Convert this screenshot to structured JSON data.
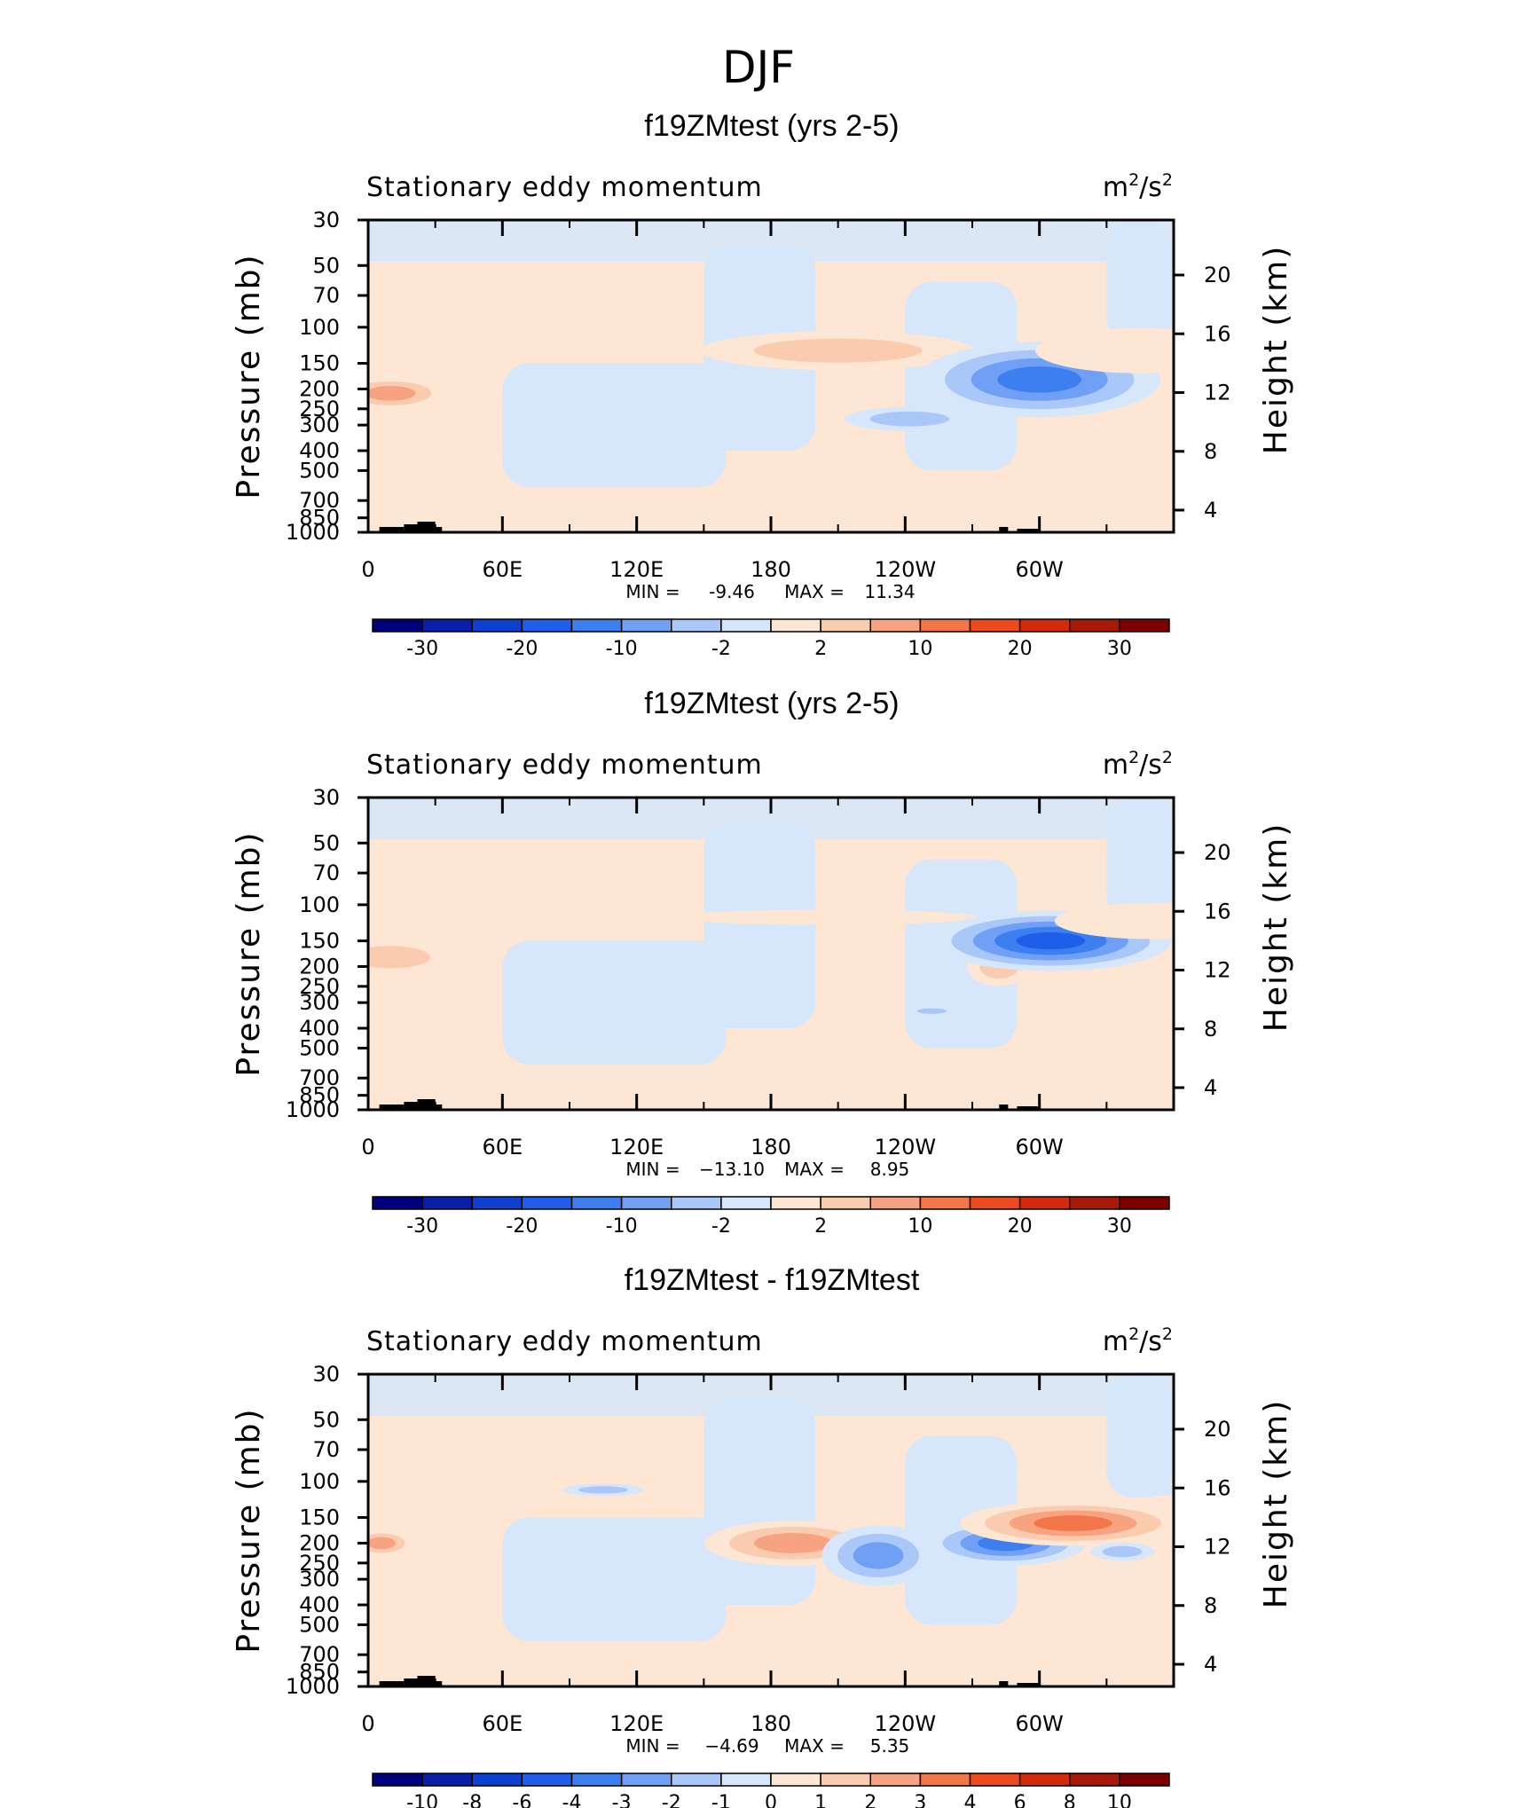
{
  "chart_data": {
    "type": "contour",
    "suptitle": "DJF",
    "panels": [
      {
        "title": "f19ZMtest (yrs 2-5)",
        "left_label": "Stationary eddy momentum",
        "units": "m²/s²",
        "units_base": "m",
        "units_sup1": "2",
        "units_mid": "/s",
        "units_sup2": "2",
        "ylabel": "Pressure (mb)",
        "y2label": "Height (km)",
        "xticks": [
          "0",
          "60E",
          "120E",
          "180",
          "120W",
          "60W"
        ],
        "yticks": [
          "30",
          "50",
          "70",
          "100",
          "150",
          "200",
          "250",
          "300",
          "400",
          "500",
          "700",
          "850",
          "1000"
        ],
        "y2ticks": [
          "20",
          "16",
          "12",
          "8",
          "4"
        ],
        "stats": {
          "min_label": "MIN =",
          "min": "-9.46",
          "max_label": "MAX =",
          "max": "11.34"
        },
        "colorbar": {
          "labels": [
            "-30",
            "-20",
            "-10",
            "-2",
            "2",
            "10",
            "20",
            "30"
          ],
          "label_slots": [
            1,
            3,
            5,
            7,
            9,
            11,
            13,
            15
          ]
        },
        "blobs": [
          {
            "lon": 10,
            "p": 210,
            "level": 3,
            "rx": 14,
            "ry": 22
          },
          {
            "lon": 110,
            "p": 115,
            "level": 1,
            "rx": 8,
            "ry": 6
          },
          {
            "lon": 210,
            "p": 130,
            "level": 2,
            "rx": 34,
            "ry": 26
          },
          {
            "lon": 242,
            "p": 280,
            "level": -2,
            "rx": 16,
            "ry": 16
          },
          {
            "lon": 282,
            "p": 220,
            "level": 2,
            "rx": 6,
            "ry": 22
          },
          {
            "lon": 300,
            "p": 180,
            "level": -4,
            "rx": 30,
            "ry": 50
          },
          {
            "lon": 345,
            "p": 130,
            "level": 1,
            "rx": 26,
            "ry": 30
          }
        ]
      },
      {
        "title": "f19ZMtest (yrs 2-5)",
        "left_label": "Stationary eddy momentum",
        "units": "m²/s²",
        "units_base": "m",
        "units_sup1": "2",
        "units_mid": "/s",
        "units_sup2": "2",
        "ylabel": "Pressure (mb)",
        "y2label": "Height (km)",
        "xticks": [
          "0",
          "60E",
          "120E",
          "180",
          "120W",
          "60W"
        ],
        "yticks": [
          "30",
          "50",
          "70",
          "100",
          "150",
          "200",
          "250",
          "300",
          "400",
          "500",
          "700",
          "850",
          "1000"
        ],
        "y2ticks": [
          "20",
          "16",
          "12",
          "8",
          "4"
        ],
        "stats": {
          "min_label": "MIN =",
          "min": "−13.10",
          "max_label": "MAX =",
          "max": "8.95"
        },
        "colorbar": {
          "labels": [
            "-30",
            "-20",
            "-10",
            "-2",
            "2",
            "10",
            "20",
            "30"
          ],
          "label_slots": [
            1,
            3,
            5,
            7,
            9,
            11,
            13,
            15
          ]
        },
        "blobs": [
          {
            "lon": 10,
            "p": 180,
            "level": 2,
            "rx": 16,
            "ry": 24
          },
          {
            "lon": 115,
            "p": 110,
            "level": 1,
            "rx": 10,
            "ry": 8
          },
          {
            "lon": 205,
            "p": 115,
            "level": 1,
            "rx": 38,
            "ry": 10
          },
          {
            "lon": 252,
            "p": 330,
            "level": -2,
            "rx": 6,
            "ry": 6
          },
          {
            "lon": 282,
            "p": 200,
            "level": 2,
            "rx": 8,
            "ry": 26
          },
          {
            "lon": 305,
            "p": 150,
            "level": -5,
            "rx": 30,
            "ry": 40
          },
          {
            "lon": 328,
            "p": 350,
            "level": 1,
            "rx": 8,
            "ry": 24
          },
          {
            "lon": 350,
            "p": 120,
            "level": 1,
            "rx": 24,
            "ry": 24
          }
        ]
      },
      {
        "title": "f19ZMtest - f19ZMtest",
        "left_label": "Stationary eddy momentum",
        "units": "m²/s²",
        "units_base": "m",
        "units_sup1": "2",
        "units_mid": "/s",
        "units_sup2": "2",
        "ylabel": "Pressure (mb)",
        "y2label": "Height (km)",
        "xticks": [
          "0",
          "60E",
          "120E",
          "180",
          "120W",
          "60W"
        ],
        "yticks": [
          "30",
          "50",
          "70",
          "100",
          "150",
          "200",
          "250",
          "300",
          "400",
          "500",
          "700",
          "850",
          "1000"
        ],
        "y2ticks": [
          "20",
          "16",
          "12",
          "8",
          "4"
        ],
        "stats": {
          "min_label": "MIN =",
          "min": "−4.69",
          "max_label": "MAX =",
          "max": "5.35"
        },
        "colorbar": {
          "labels": [
            "-10",
            "-8",
            "-6",
            "-4",
            "-3",
            "-2",
            "-1",
            "0",
            "1",
            "2",
            "3",
            "4",
            "6",
            "8",
            "10"
          ],
          "label_slots": [
            1,
            2,
            3,
            4,
            5,
            6,
            7,
            8,
            9,
            10,
            11,
            12,
            13,
            14,
            15
          ]
        },
        "blobs": [
          {
            "lon": 6,
            "p": 200,
            "level": 3,
            "rx": 8,
            "ry": 18
          },
          {
            "lon": 105,
            "p": 110,
            "level": -2,
            "rx": 10,
            "ry": 8
          },
          {
            "lon": 190,
            "p": 200,
            "level": 3,
            "rx": 22,
            "ry": 30
          },
          {
            "lon": 228,
            "p": 230,
            "level": -3,
            "rx": 14,
            "ry": 40
          },
          {
            "lon": 285,
            "p": 200,
            "level": -4,
            "rx": 20,
            "ry": 30
          },
          {
            "lon": 315,
            "p": 160,
            "level": 4,
            "rx": 28,
            "ry": 30
          },
          {
            "lon": 337,
            "p": 220,
            "level": -2,
            "rx": 8,
            "ry": 12
          },
          {
            "lon": 352,
            "p": 110,
            "level": -1,
            "rx": 6,
            "ry": 8
          }
        ]
      }
    ],
    "palette": [
      "#00007f",
      "#0a1fa8",
      "#0d3fd0",
      "#1e5ee8",
      "#3d7ff0",
      "#6fa0f5",
      "#a9c7f8",
      "#d6e6fb",
      "#fde6d4",
      "#fbcbb0",
      "#f7a280",
      "#f27648",
      "#ed4a1e",
      "#d42a0c",
      "#a81a08",
      "#7d0000"
    ]
  }
}
